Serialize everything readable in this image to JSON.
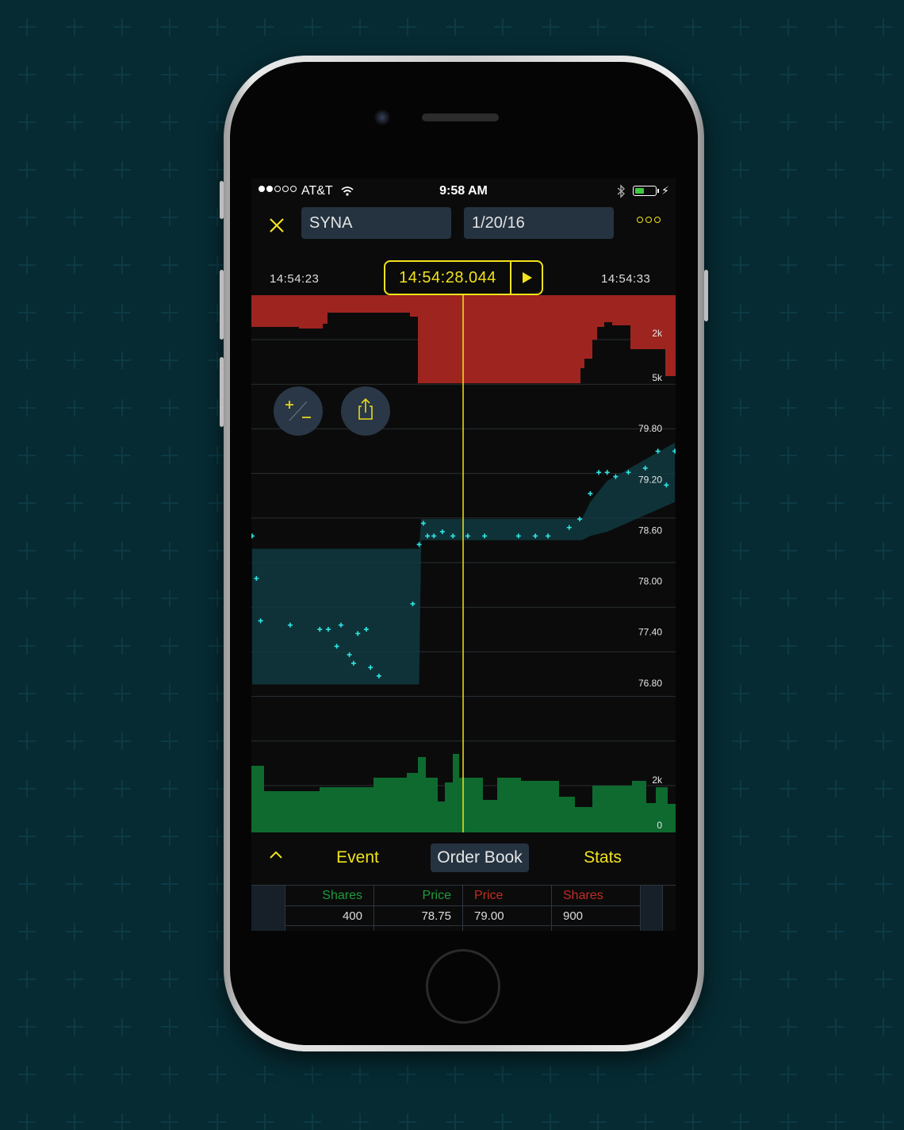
{
  "status_bar": {
    "carrier": "AT&T",
    "time": "9:58 AM",
    "signal_bars_filled": 2,
    "signal_bars_total": 5,
    "battery_level": 0.45
  },
  "toolbar": {
    "close_icon": "close-x-icon",
    "symbol": "SYNA",
    "date": "1/20/16",
    "more_icon": "more-dots-icon"
  },
  "timeline": {
    "start": "14:54:23",
    "cursor": "14:54:28.044",
    "end": "14:54:33",
    "play_icon": "play-icon"
  },
  "chart_data": {
    "type": "line",
    "panels": [
      {
        "name": "ask-volume",
        "color": "#9e2420",
        "tick_labels": [
          "2k",
          "5k"
        ]
      },
      {
        "name": "price",
        "color": "#2ee6e6",
        "tick_labels": [
          "79.80",
          "79.20",
          "78.60",
          "78.00",
          "77.40",
          "76.80"
        ],
        "ylim": [
          76.2,
          80.4
        ],
        "trades": {
          "x": [
            0,
            0.1,
            0.2,
            0.9,
            1.6,
            1.8,
            2.0,
            2.1,
            2.3,
            2.4,
            2.5,
            2.7,
            2.8,
            3.0,
            3.8,
            3.95,
            4.05,
            4.15,
            4.3,
            4.5,
            4.75,
            5.1,
            5.5,
            6.3,
            6.7,
            7.0,
            7.5,
            7.75,
            8.0,
            8.2,
            8.4,
            8.6,
            8.9,
            9.3,
            9.6,
            9.8,
            10.0
          ],
          "y": [
            78.6,
            78.1,
            77.6,
            77.55,
            77.5,
            77.5,
            77.3,
            77.55,
            77.2,
            77.1,
            77.45,
            77.5,
            77.05,
            76.95,
            77.8,
            78.5,
            78.75,
            78.6,
            78.6,
            78.65,
            78.6,
            78.6,
            78.6,
            78.6,
            78.6,
            78.6,
            78.7,
            78.8,
            79.1,
            79.35,
            79.35,
            79.3,
            79.35,
            79.4,
            79.6,
            79.2,
            79.6
          ]
        },
        "bid_ask_band": {
          "x": [
            0,
            3.95,
            4.0,
            7.8,
            8.0,
            8.4,
            10.0
          ],
          "low": [
            76.85,
            76.85,
            78.55,
            78.55,
            78.6,
            78.65,
            79.0
          ],
          "high": [
            78.45,
            78.45,
            78.8,
            78.8,
            79.0,
            79.25,
            79.7
          ]
        }
      },
      {
        "name": "bid-volume",
        "color": "#0e6a2f",
        "tick_labels": [
          "2k",
          "0"
        ]
      }
    ],
    "cursor_time": "14:54:28.044"
  },
  "floating_buttons": {
    "zoom_icon": "plus-minus-icon",
    "share_icon": "share-icon"
  },
  "tabs": {
    "collapse_icon": "chevron-up-icon",
    "items": [
      "Event",
      "Order Book",
      "Stats"
    ],
    "active": "Order Book"
  },
  "order_book": {
    "headers": {
      "bid_shares": "Shares",
      "bid_price": "Price",
      "ask_price": "Price",
      "ask_shares": "Shares"
    },
    "rows": [
      {
        "bid_shares": "400",
        "bid_price": "78.75",
        "ask_price": "79.00",
        "ask_shares": "900"
      }
    ],
    "colors": {
      "bid": "#1e9c3c",
      "ask": "#c22c22"
    }
  }
}
